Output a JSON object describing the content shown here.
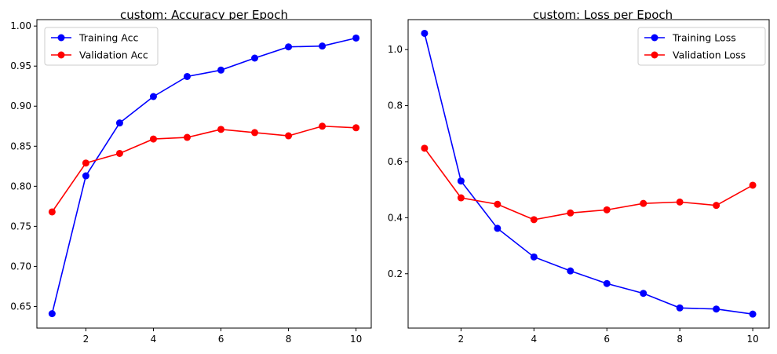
{
  "chart_data": [
    {
      "type": "line",
      "title": "custom: Accuracy per Epoch",
      "xlabel": "",
      "ylabel": "",
      "x": [
        1,
        2,
        3,
        4,
        5,
        6,
        7,
        8,
        9,
        10
      ],
      "xlim": [
        0.55,
        10.45
      ],
      "ylim": [
        0.623,
        1.008
      ],
      "xticks": [
        2,
        4,
        6,
        8,
        10
      ],
      "yticks": [
        0.65,
        0.7,
        0.75,
        0.8,
        0.85,
        0.9,
        0.95,
        1.0
      ],
      "tick_labels_x": [
        "2",
        "4",
        "6",
        "8",
        "10"
      ],
      "tick_labels_y": [
        "0.65",
        "0.70",
        "0.75",
        "0.80",
        "0.85",
        "0.90",
        "0.95",
        "1.00"
      ],
      "grid": false,
      "legend": "upper-left",
      "series": [
        {
          "name": "Training Acc",
          "color": "#0000ff",
          "values": [
            0.641,
            0.813,
            0.879,
            0.912,
            0.937,
            0.945,
            0.96,
            0.974,
            0.975,
            0.985
          ]
        },
        {
          "name": "Validation Acc",
          "color": "#ff0000",
          "values": [
            0.768,
            0.829,
            0.841,
            0.859,
            0.861,
            0.871,
            0.867,
            0.863,
            0.875,
            0.873
          ]
        }
      ]
    },
    {
      "type": "line",
      "title": "custom: Loss per Epoch",
      "xlabel": "",
      "ylabel": "",
      "x": [
        1,
        2,
        3,
        4,
        5,
        6,
        7,
        8,
        9,
        10
      ],
      "xlim": [
        0.55,
        10.45
      ],
      "ylim": [
        0.006,
        1.107
      ],
      "xticks": [
        2,
        4,
        6,
        8,
        10
      ],
      "yticks": [
        0.2,
        0.4,
        0.6,
        0.8,
        1.0
      ],
      "tick_labels_x": [
        "2",
        "4",
        "6",
        "8",
        "10"
      ],
      "tick_labels_y": [
        "0.2",
        "0.4",
        "0.6",
        "0.8",
        "1.0"
      ],
      "grid": false,
      "legend": "upper-right",
      "series": [
        {
          "name": "Training Loss",
          "color": "#0000ff",
          "values": [
            1.058,
            0.531,
            0.362,
            0.26,
            0.21,
            0.165,
            0.13,
            0.078,
            0.074,
            0.056
          ]
        },
        {
          "name": "Validation Loss",
          "color": "#ff0000",
          "values": [
            0.648,
            0.471,
            0.448,
            0.393,
            0.417,
            0.428,
            0.451,
            0.456,
            0.444,
            0.516
          ]
        }
      ]
    }
  ]
}
